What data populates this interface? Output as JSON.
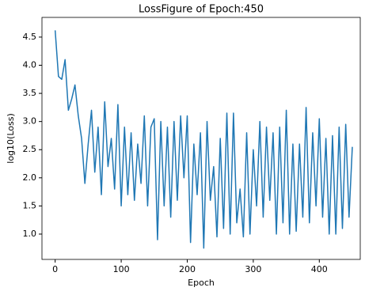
{
  "chart_data": {
    "type": "line",
    "title": "LossFigure of Epoch:450",
    "x_label": "Epoch",
    "y_label": "log10(Loss)",
    "x": [
      0,
      5,
      10,
      15,
      20,
      25,
      30,
      35,
      40,
      45,
      50,
      55,
      60,
      65,
      70,
      75,
      80,
      85,
      90,
      95,
      100,
      105,
      110,
      115,
      120,
      125,
      130,
      135,
      140,
      145,
      150,
      155,
      160,
      165,
      170,
      175,
      180,
      185,
      190,
      195,
      200,
      205,
      210,
      215,
      220,
      225,
      230,
      235,
      240,
      245,
      250,
      255,
      260,
      265,
      270,
      275,
      280,
      285,
      290,
      295,
      300,
      305,
      310,
      315,
      320,
      325,
      330,
      335,
      340,
      345,
      350,
      355,
      360,
      365,
      370,
      375,
      380,
      385,
      390,
      395,
      400,
      405,
      410,
      415,
      420,
      425,
      430,
      435,
      440,
      445,
      450
    ],
    "series": [
      {
        "name": "loss",
        "color": "#1f77b4",
        "values": [
          4.62,
          3.8,
          3.75,
          4.1,
          3.2,
          3.4,
          3.65,
          3.1,
          2.7,
          1.9,
          2.6,
          3.2,
          2.1,
          2.9,
          1.7,
          3.35,
          2.2,
          2.7,
          1.8,
          3.3,
          1.5,
          2.9,
          1.7,
          2.8,
          1.6,
          2.6,
          1.9,
          3.1,
          1.5,
          2.9,
          3.05,
          0.9,
          3.0,
          1.5,
          2.9,
          1.3,
          3.0,
          1.6,
          3.1,
          2.0,
          3.1,
          0.85,
          2.6,
          1.7,
          2.8,
          0.75,
          3.0,
          1.6,
          2.2,
          0.95,
          2.7,
          1.1,
          3.15,
          1.0,
          3.15,
          1.2,
          1.8,
          0.95,
          2.8,
          1.0,
          2.5,
          1.5,
          3.0,
          1.3,
          2.9,
          1.6,
          2.8,
          1.0,
          2.9,
          1.2,
          3.2,
          1.0,
          2.6,
          1.05,
          2.6,
          1.3,
          3.25,
          1.2,
          2.8,
          1.5,
          3.05,
          1.3,
          2.7,
          1.0,
          2.75,
          1.0,
          2.9,
          1.1,
          2.95,
          1.3,
          2.55
        ]
      }
    ],
    "xlim": [
      -20,
      462
    ],
    "ylim": [
      0.55,
      4.85
    ],
    "xticks": [
      0,
      100,
      200,
      300,
      400
    ],
    "yticks": [
      {
        "value": 1.0,
        "label": "1.0"
      },
      1.5,
      {
        "value": 2.0,
        "label": "2.0"
      },
      2.5,
      {
        "value": 3.0,
        "label": "3.0"
      },
      3.5,
      {
        "value": 4.0,
        "label": "4.0"
      },
      4.5
    ],
    "grid": false
  }
}
